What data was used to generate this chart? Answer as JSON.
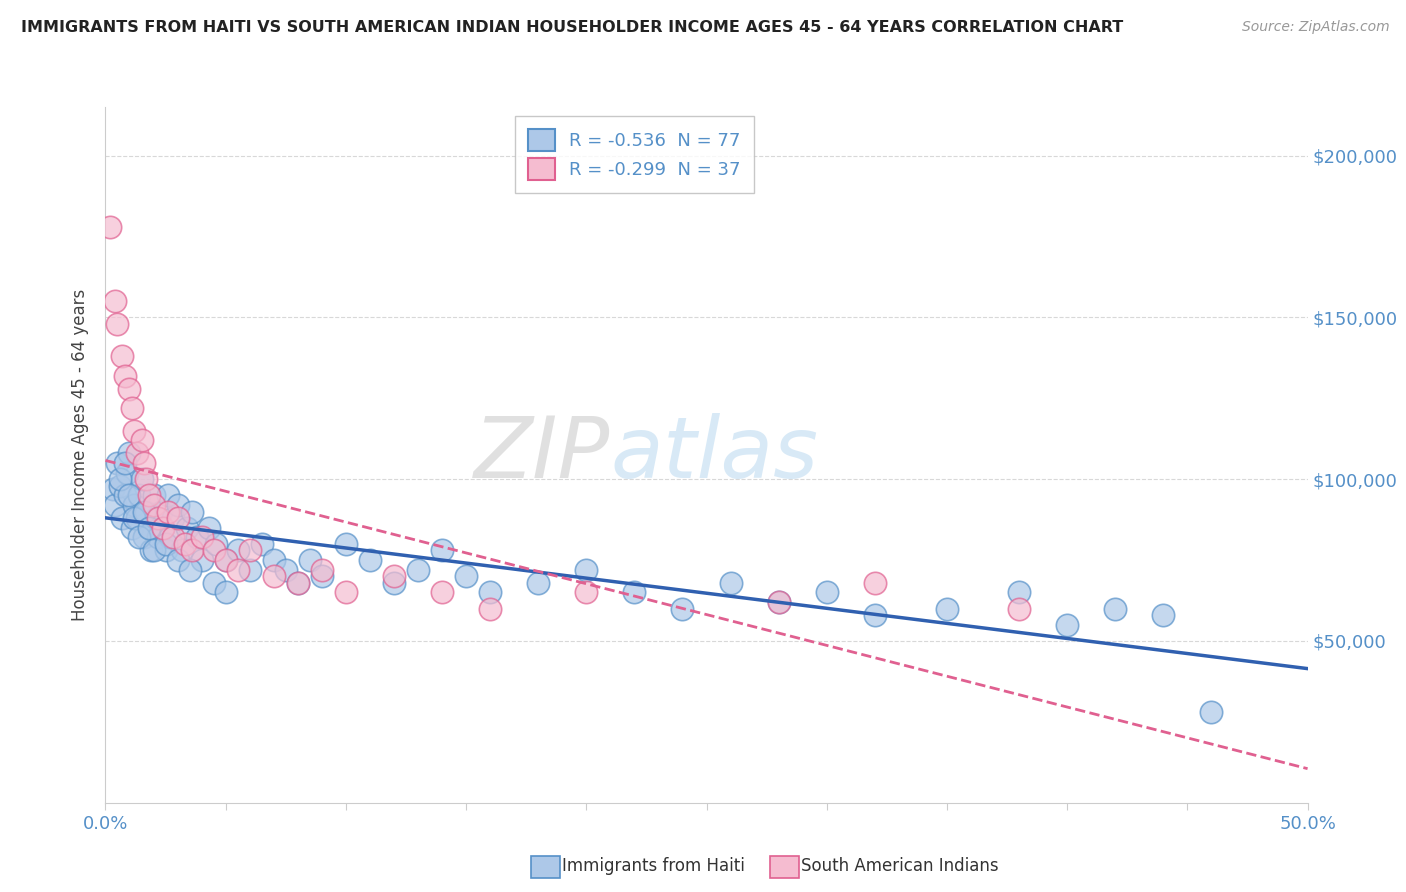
{
  "title": "IMMIGRANTS FROM HAITI VS SOUTH AMERICAN INDIAN HOUSEHOLDER INCOME AGES 45 - 64 YEARS CORRELATION CHART",
  "source": "Source: ZipAtlas.com",
  "ylabel": "Householder Income Ages 45 - 64 years",
  "xlim": [
    0.0,
    0.5
  ],
  "ylim": [
    0,
    215000
  ],
  "xticks": [
    0.0,
    0.05,
    0.1,
    0.15,
    0.2,
    0.25,
    0.3,
    0.35,
    0.4,
    0.45,
    0.5
  ],
  "yticks": [
    0,
    50000,
    100000,
    150000,
    200000
  ],
  "right_yticklabels": [
    "",
    "$50,000",
    "$100,000",
    "$150,000",
    "$200,000"
  ],
  "haiti_color_fill": "#adc8e8",
  "haiti_color_edge": "#5590c8",
  "sa_color_fill": "#f5bcd0",
  "sa_color_edge": "#e06090",
  "haiti_line_color": "#3060b0",
  "sa_line_color": "#e06090",
  "haiti_R": "-0.536",
  "haiti_N": "77",
  "sa_R": "-0.299",
  "sa_N": "37",
  "legend_label_haiti": "Immigrants from Haiti",
  "legend_label_sa": "South American Indians",
  "watermark_zip": "ZIP",
  "watermark_atlas": "atlas",
  "background_color": "#ffffff",
  "grid_color": "#d8d8d8",
  "tick_color": "#5590c8",
  "title_color": "#222222",
  "source_color": "#999999",
  "haiti_x": [
    0.003,
    0.004,
    0.005,
    0.006,
    0.007,
    0.008,
    0.009,
    0.01,
    0.011,
    0.012,
    0.013,
    0.014,
    0.015,
    0.016,
    0.017,
    0.018,
    0.019,
    0.02,
    0.021,
    0.022,
    0.023,
    0.024,
    0.025,
    0.026,
    0.027,
    0.028,
    0.03,
    0.032,
    0.034,
    0.036,
    0.038,
    0.04,
    0.043,
    0.046,
    0.05,
    0.055,
    0.06,
    0.065,
    0.07,
    0.075,
    0.08,
    0.085,
    0.09,
    0.1,
    0.11,
    0.12,
    0.13,
    0.14,
    0.15,
    0.16,
    0.18,
    0.2,
    0.22,
    0.24,
    0.26,
    0.28,
    0.3,
    0.32,
    0.35,
    0.38,
    0.4,
    0.42,
    0.44,
    0.46,
    0.006,
    0.008,
    0.01,
    0.012,
    0.014,
    0.016,
    0.018,
    0.02,
    0.025,
    0.03,
    0.035,
    0.045,
    0.05
  ],
  "haiti_y": [
    97000,
    92000,
    105000,
    98000,
    88000,
    95000,
    102000,
    108000,
    85000,
    92000,
    88000,
    95000,
    100000,
    82000,
    90000,
    85000,
    78000,
    95000,
    88000,
    82000,
    90000,
    85000,
    78000,
    95000,
    82000,
    88000,
    92000,
    78000,
    85000,
    90000,
    82000,
    75000,
    85000,
    80000,
    75000,
    78000,
    72000,
    80000,
    75000,
    72000,
    68000,
    75000,
    70000,
    80000,
    75000,
    68000,
    72000,
    78000,
    70000,
    65000,
    68000,
    72000,
    65000,
    60000,
    68000,
    62000,
    65000,
    58000,
    60000,
    65000,
    55000,
    60000,
    58000,
    28000,
    100000,
    105000,
    95000,
    88000,
    82000,
    90000,
    85000,
    78000,
    80000,
    75000,
    72000,
    68000,
    65000
  ],
  "sa_x": [
    0.002,
    0.004,
    0.005,
    0.007,
    0.008,
    0.01,
    0.011,
    0.012,
    0.013,
    0.015,
    0.016,
    0.017,
    0.018,
    0.02,
    0.022,
    0.024,
    0.026,
    0.028,
    0.03,
    0.033,
    0.036,
    0.04,
    0.045,
    0.05,
    0.055,
    0.06,
    0.07,
    0.08,
    0.09,
    0.1,
    0.12,
    0.14,
    0.16,
    0.2,
    0.28,
    0.32,
    0.38
  ],
  "sa_y": [
    178000,
    155000,
    148000,
    138000,
    132000,
    128000,
    122000,
    115000,
    108000,
    112000,
    105000,
    100000,
    95000,
    92000,
    88000,
    85000,
    90000,
    82000,
    88000,
    80000,
    78000,
    82000,
    78000,
    75000,
    72000,
    78000,
    70000,
    68000,
    72000,
    65000,
    70000,
    65000,
    60000,
    65000,
    62000,
    68000,
    60000
  ]
}
